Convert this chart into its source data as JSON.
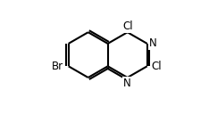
{
  "bg_color": "#ffffff",
  "bond_color": "#000000",
  "bond_lw": 1.5,
  "doff": 3.0,
  "BL": 33,
  "figsize": [
    2.34,
    1.38
  ],
  "dpi": 100,
  "xlim": [
    0,
    234
  ],
  "ylim": [
    0,
    138
  ],
  "label_fontsize": 8.5,
  "atoms": {
    "C4a": [
      118,
      96
    ],
    "C8a": [
      118,
      63
    ],
    "benz_start_angle": 30,
    "pyr_start_angle": 90
  }
}
